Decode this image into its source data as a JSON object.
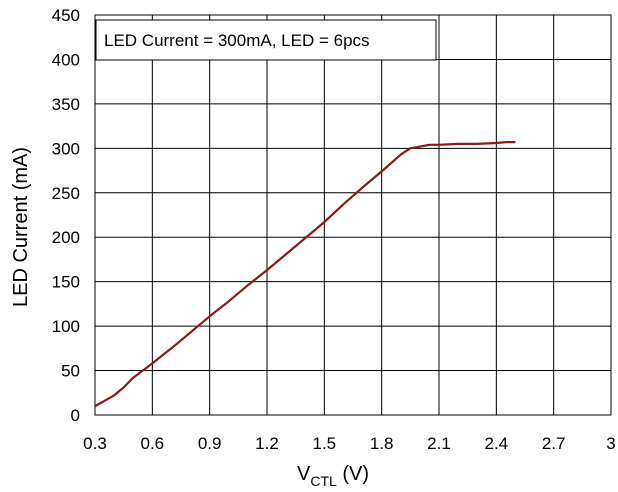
{
  "chart_data": {
    "type": "line",
    "annotation": "LED Current = 300mA, LED = 6pcs",
    "xlabel": {
      "main": "V",
      "sub": "CTL",
      "suffix": " (V)"
    },
    "ylabel": "LED Current (mA)",
    "xlim": [
      0.3,
      3.0
    ],
    "ylim": [
      0,
      450
    ],
    "x_ticks": [
      0.3,
      0.6,
      0.9,
      1.2,
      1.5,
      1.8,
      2.1,
      2.4,
      2.7,
      3.0
    ],
    "x_tick_labels": [
      "0.3",
      "0.6",
      "0.9",
      "1.2",
      "1.5",
      "1.8",
      "2.1",
      "2.4",
      "2.7",
      "3"
    ],
    "y_ticks": [
      0,
      50,
      100,
      150,
      200,
      250,
      300,
      350,
      400,
      450
    ],
    "y_tick_labels": [
      "0",
      "50",
      "100",
      "150",
      "200",
      "250",
      "300",
      "350",
      "400",
      "450"
    ],
    "grid": true,
    "line_color": "#8b1a1a",
    "series": [
      {
        "x": [
          0.3,
          0.35,
          0.4,
          0.45,
          0.5,
          0.6,
          0.7,
          0.8,
          0.9,
          1.0,
          1.1,
          1.2,
          1.3,
          1.4,
          1.5,
          1.6,
          1.7,
          1.8,
          1.9,
          1.95,
          2.0,
          2.05,
          2.1,
          2.2,
          2.3,
          2.4,
          2.45,
          2.5
        ],
        "y": [
          10,
          16,
          22,
          31,
          42,
          58,
          75,
          93,
          111,
          128,
          146,
          163,
          181,
          199,
          217,
          237,
          256,
          274,
          293,
          300,
          302,
          304,
          304,
          305,
          305,
          306,
          307,
          307
        ]
      }
    ]
  }
}
